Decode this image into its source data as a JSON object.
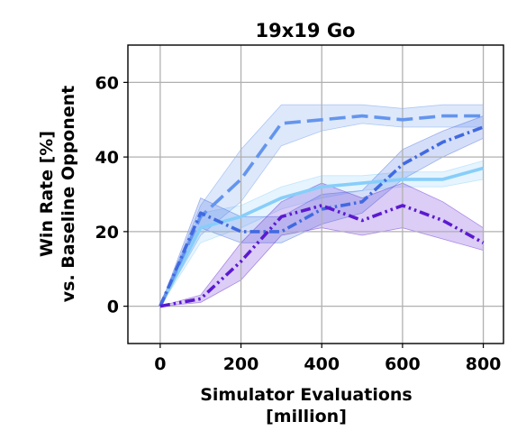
{
  "chart_data": {
    "type": "line",
    "title": "19x19 Go",
    "xlabel_line1": "Simulator Evaluations",
    "xlabel_line2": "[million]",
    "ylabel_line1": "Win Rate [%]",
    "ylabel_line2": "vs. Baseline Opponent",
    "xlim": [
      -80,
      850
    ],
    "ylim": [
      -10,
      70
    ],
    "xticks": [
      0,
      200,
      400,
      600,
      800
    ],
    "yticks": [
      0,
      20,
      40,
      60
    ],
    "grid": true,
    "series": [
      {
        "color": "#87cefa",
        "dash": "solid",
        "x": [
          0,
          100,
          200,
          300,
          400,
          500,
          600,
          700,
          800
        ],
        "values": [
          0,
          21,
          24,
          29,
          32,
          33,
          34,
          34,
          37
        ],
        "lower": [
          0,
          17,
          21,
          26,
          29,
          31,
          32,
          32,
          34
        ],
        "upper": [
          0,
          25,
          27,
          32,
          35,
          35,
          36,
          36,
          39
        ]
      },
      {
        "color": "#6495ed",
        "dash": "longdash",
        "x": [
          0,
          100,
          200,
          300,
          400,
          500,
          600,
          700,
          800
        ],
        "values": [
          0,
          24,
          34,
          49,
          50,
          51,
          50,
          51,
          51
        ],
        "lower": [
          0,
          19,
          28,
          43,
          47,
          49,
          48,
          48,
          48
        ],
        "upper": [
          0,
          27,
          42,
          54,
          54,
          54,
          53,
          54,
          54
        ]
      },
      {
        "color": "#4169e1",
        "dash": "dashdot",
        "x": [
          0,
          100,
          200,
          300,
          400,
          500,
          600,
          700,
          800
        ],
        "values": [
          0,
          25,
          20,
          20,
          26,
          28,
          38,
          44,
          48
        ],
        "lower": [
          0,
          21,
          17,
          17,
          22,
          25,
          34,
          40,
          45
        ],
        "upper": [
          0,
          29,
          24,
          24,
          30,
          31,
          42,
          47,
          51
        ]
      },
      {
        "color": "#5b1ad0",
        "dash": "dashdotdot",
        "x": [
          0,
          100,
          200,
          300,
          400,
          500,
          600,
          700,
          800
        ],
        "values": [
          0,
          2,
          12,
          24,
          27,
          23,
          27,
          23,
          17
        ],
        "lower": [
          0,
          1,
          7,
          19,
          21,
          19,
          21,
          18,
          15
        ],
        "upper": [
          0,
          3,
          17,
          28,
          33,
          29,
          33,
          28,
          21
        ]
      }
    ]
  }
}
